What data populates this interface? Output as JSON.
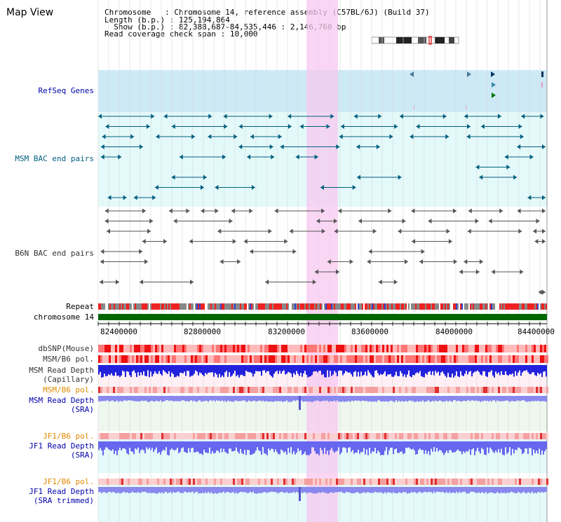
{
  "header": {
    "title": "Map View",
    "chromosome_key": "Chromosome   ",
    "chromosome_value": ": Chromosome 14, reference assembly (C57BL/6J) (Build 37)",
    "length_key": "Length (b.p.) ",
    "length_value": ": 125,194,864",
    "show_key": "  Show (b.p.) ",
    "show_value": ": 82,388,687-84,535,446 : 2,146,760 bp",
    "span_key": "Read coverage check span ",
    "span_value": ": 10,000"
  },
  "tracks": {
    "refseq": "RefSeq Genes",
    "msm_bac": "MSM BAC end pairs",
    "b6n_bac": "B6N BAC end pairs",
    "repeat": "Repeat",
    "chromosome": "chromosome 14",
    "dbsnp": "dbSNP(Mouse)",
    "msm_b6_pol_1": "MSM/B6 pol.",
    "msm_read_depth_cap_1": "MSM Read Depth",
    "msm_read_depth_cap_2": "(Capillary)",
    "msm_b6_pol_2": "MSM/B6 pol.",
    "msm_read_depth_sra_1": "MSM Read Depth",
    "msm_read_depth_sra_2": "(SRA)",
    "jf1_b6_pol_1": "JF1/B6 pol.",
    "jf1_read_depth_sra_1": "JF1 Read Depth",
    "jf1_read_depth_sra_2": "(SRA)",
    "jf1_b6_pol_2": "JF1/B6 pol.",
    "jf1_read_depth_trim_1": "JF1 Read Depth",
    "jf1_read_depth_trim_2": "(SRA trimmed)"
  },
  "axis": {
    "ticks": [
      "82400000",
      "82800000",
      "83200000",
      "83600000",
      "84000000",
      "84400000"
    ]
  },
  "colors": {
    "highlight": "#f7c8ef",
    "refseq_bg": "#cde9f6",
    "msm_bac_bg": "#e4f9f9",
    "chromosome_bar": "#006600",
    "msm_feature": "#006080",
    "b6n_feature": "#555555",
    "depth_blue": "#2222dd",
    "label_blue": "#0000aa",
    "label_orange": "#e08a00"
  }
}
